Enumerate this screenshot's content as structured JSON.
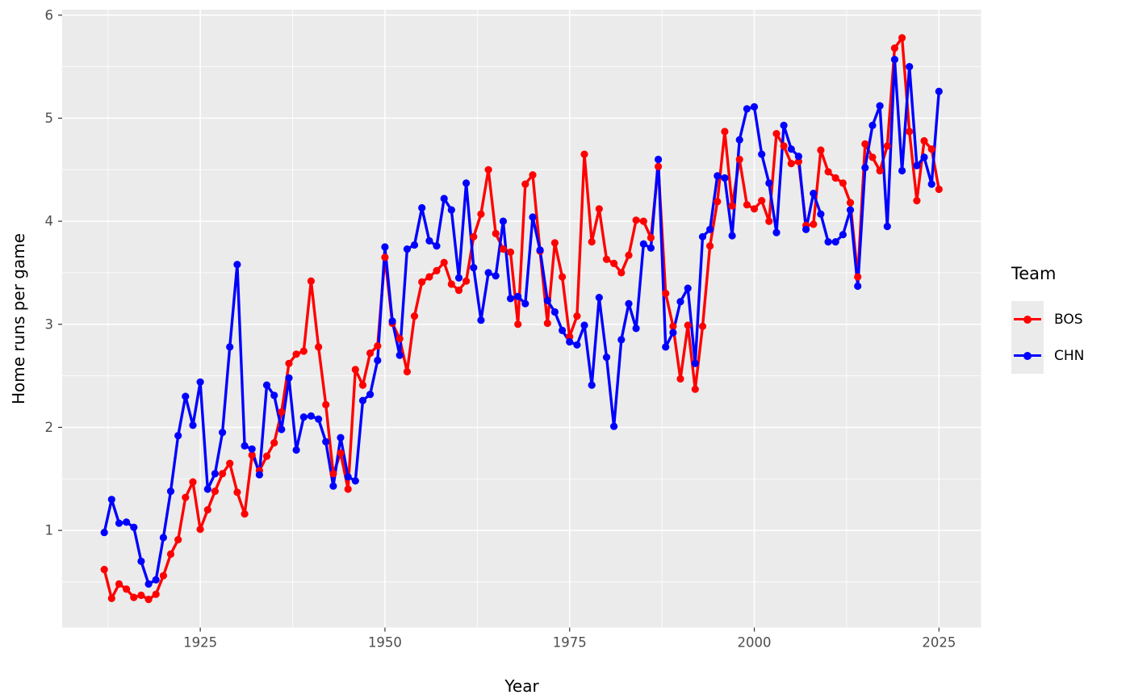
{
  "chart_data": {
    "type": "line",
    "title": "",
    "xlabel": "Year",
    "ylabel": "Home runs per game",
    "legend_position": "right",
    "grid": "on",
    "panel_bg": "#EBEBEB",
    "grid_color": "#FFFFFF",
    "axis_text_color": "#4D4D4D",
    "tick_mark_color": "#333333",
    "xlim": [
      1906.3,
      2030.7
    ],
    "ylim": [
      0.057,
      6.053
    ],
    "x_major_ticks": [
      1925,
      1950,
      1975,
      2000,
      2025
    ],
    "x_tick_labels": [
      "1925",
      "1950",
      "1975",
      "2000",
      "2025"
    ],
    "x_minor_ticks": [
      1912.5,
      1937.5,
      1962.5,
      1987.5,
      2012.5
    ],
    "y_major_ticks": [
      1,
      2,
      3,
      4,
      5,
      6
    ],
    "y_tick_labels": [
      "1",
      "2",
      "3",
      "4",
      "5",
      "6"
    ],
    "y_minor_ticks": [
      0.5,
      1.5,
      2.5,
      3.5,
      4.5,
      5.5
    ],
    "x": [
      1912,
      1913,
      1914,
      1915,
      1916,
      1917,
      1918,
      1919,
      1920,
      1921,
      1922,
      1923,
      1924,
      1925,
      1926,
      1927,
      1928,
      1929,
      1930,
      1931,
      1932,
      1933,
      1934,
      1935,
      1936,
      1937,
      1938,
      1939,
      1940,
      1941,
      1942,
      1943,
      1944,
      1945,
      1946,
      1947,
      1948,
      1949,
      1950,
      1951,
      1952,
      1953,
      1954,
      1955,
      1956,
      1957,
      1958,
      1959,
      1960,
      1961,
      1962,
      1963,
      1964,
      1965,
      1966,
      1967,
      1968,
      1969,
      1970,
      1971,
      1972,
      1973,
      1974,
      1975,
      1976,
      1977,
      1978,
      1979,
      1980,
      1981,
      1982,
      1983,
      1984,
      1985,
      1986,
      1987,
      1988,
      1989,
      1990,
      1991,
      1992,
      1993,
      1994,
      1995,
      1996,
      1997,
      1998,
      1999,
      2000,
      2001,
      2002,
      2003,
      2004,
      2005,
      2006,
      2007,
      2008,
      2009,
      2010,
      2011,
      2012,
      2013,
      2014,
      2015,
      2016,
      2017,
      2018,
      2019,
      2020,
      2021,
      2022,
      2023,
      2024,
      2025
    ],
    "series": [
      {
        "name": "BOS",
        "color": "#FF0000",
        "values": [
          0.62,
          0.34,
          0.48,
          0.43,
          0.35,
          0.37,
          0.33,
          0.38,
          0.56,
          0.77,
          0.91,
          1.32,
          1.47,
          1.01,
          1.2,
          1.38,
          1.55,
          1.65,
          1.37,
          1.16,
          1.73,
          1.58,
          1.72,
          1.85,
          2.15,
          2.62,
          2.71,
          2.74,
          3.42,
          2.78,
          2.22,
          1.55,
          1.75,
          1.4,
          2.56,
          2.41,
          2.72,
          2.79,
          3.65,
          3.01,
          2.86,
          2.54,
          3.08,
          3.41,
          3.46,
          3.52,
          3.6,
          3.39,
          3.33,
          3.42,
          3.85,
          4.07,
          4.5,
          3.88,
          3.73,
          3.7,
          3.0,
          4.36,
          4.45,
          3.71,
          3.01,
          3.79,
          3.46,
          2.88,
          3.08,
          4.65,
          3.8,
          4.12,
          3.63,
          3.59,
          3.5,
          3.67,
          4.01,
          4.0,
          3.84,
          4.53,
          3.3,
          2.98,
          2.47,
          2.99,
          2.37,
          2.98,
          3.76,
          4.19,
          4.87,
          4.15,
          4.6,
          4.16,
          4.12,
          4.2,
          4.0,
          4.85,
          4.73,
          4.56,
          4.58,
          3.96,
          3.97,
          4.69,
          4.48,
          4.42,
          4.37,
          4.18,
          3.46,
          4.75,
          4.62,
          4.49,
          4.73,
          5.68,
          5.78,
          4.87,
          4.2,
          4.78,
          4.7,
          4.31
        ]
      },
      {
        "name": "CHN",
        "color": "#0000FF",
        "values": [
          0.98,
          1.3,
          1.07,
          1.08,
          1.03,
          0.7,
          0.48,
          0.52,
          0.93,
          1.38,
          1.92,
          2.3,
          2.02,
          2.44,
          1.4,
          1.55,
          1.95,
          2.78,
          3.58,
          1.82,
          1.79,
          1.54,
          2.41,
          2.31,
          1.98,
          2.48,
          1.78,
          2.1,
          2.11,
          2.08,
          1.86,
          1.43,
          1.9,
          1.52,
          1.48,
          2.26,
          2.32,
          2.65,
          3.75,
          3.03,
          2.7,
          3.73,
          3.77,
          4.13,
          3.81,
          3.76,
          4.22,
          4.11,
          3.45,
          4.37,
          3.55,
          3.04,
          3.5,
          3.47,
          4.0,
          3.25,
          3.27,
          3.2,
          4.04,
          3.72,
          3.23,
          3.12,
          2.94,
          2.83,
          2.8,
          2.99,
          2.41,
          3.26,
          2.68,
          2.01,
          2.85,
          3.2,
          2.96,
          3.78,
          3.74,
          4.6,
          2.78,
          2.92,
          3.22,
          3.35,
          2.62,
          3.85,
          3.92,
          4.44,
          4.42,
          3.86,
          4.79,
          5.09,
          5.11,
          4.65,
          4.37,
          3.89,
          4.93,
          4.7,
          4.63,
          3.92,
          4.27,
          4.07,
          3.8,
          3.8,
          3.87,
          4.11,
          3.37,
          4.52,
          4.93,
          5.12,
          3.95,
          5.57,
          4.49,
          5.5,
          4.54,
          4.62,
          4.36,
          5.26
        ]
      }
    ]
  },
  "legend": {
    "title": "Team",
    "items": [
      {
        "label": "BOS",
        "color": "#FF0000"
      },
      {
        "label": "CHN",
        "color": "#0000FF"
      }
    ]
  }
}
